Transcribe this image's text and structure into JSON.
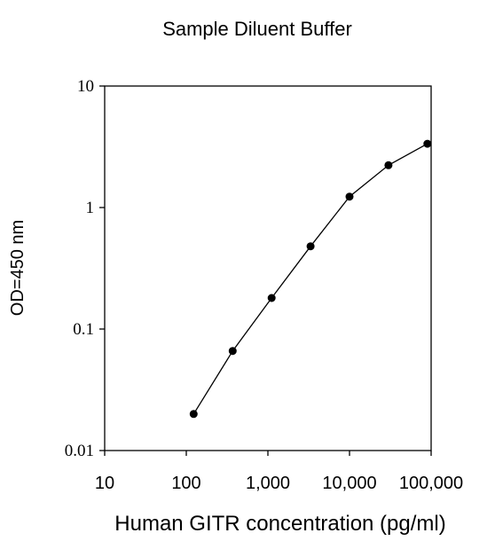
{
  "chart_data": {
    "type": "line",
    "title": "Sample Diluent Buffer",
    "xlabel": "Human GITR concentration (pg/ml)",
    "ylabel": "OD=450 nm",
    "x_scale": "log",
    "y_scale": "log",
    "xlim": [
      10,
      100000
    ],
    "ylim": [
      0.01,
      10
    ],
    "x_ticks": [
      10,
      100,
      1000,
      10000,
      100000
    ],
    "x_tick_labels": [
      "10",
      "100",
      "1,000",
      "10,000",
      "100,000"
    ],
    "y_ticks": [
      0.01,
      0.1,
      1,
      10
    ],
    "y_tick_labels": [
      "0.01",
      "0.1",
      "1",
      "10"
    ],
    "grid": false,
    "legend": "none",
    "series": [
      {
        "x": [
          123,
          370,
          1111,
          3333,
          10000,
          30000,
          90000
        ],
        "y": [
          0.02,
          0.066,
          0.18,
          0.48,
          1.23,
          2.23,
          3.35
        ]
      }
    ],
    "colors": {
      "line": "#000000",
      "marker": "#000000",
      "axis": "#000000"
    }
  }
}
